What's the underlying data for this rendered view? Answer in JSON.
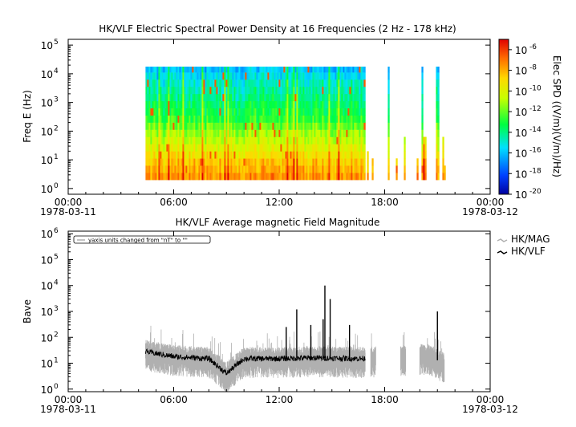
{
  "chart_data": [
    {
      "type": "heatmap",
      "title": "HK/VLF  Electric Spectral Power Density at 16 Frequencies (2 Hz - 178 kHz)",
      "ylabel": "Freq E (Hz)",
      "ylim_log10": [
        -0.2,
        5.2
      ],
      "y_scale": "log",
      "xlim_hours": [
        0,
        24
      ],
      "x_ticks": [
        {
          "time": "00:00",
          "date": "1978-03-11"
        },
        {
          "time": "06:00",
          "date": ""
        },
        {
          "time": "12:00",
          "date": ""
        },
        {
          "time": "18:00",
          "date": ""
        },
        {
          "time": "00:00",
          "date": "1978-03-12"
        }
      ],
      "y_ticks_log10": [
        0,
        1,
        2,
        3,
        4,
        5
      ],
      "colorbar": {
        "label": "Elec SPD ((V/m)(V/m)/Hz)",
        "range_log10": [
          -20,
          -5
        ],
        "tick_exponents": [
          -6,
          -8,
          -10,
          -12,
          -14,
          -16,
          -18,
          -20
        ]
      },
      "data_coverage_hours": [
        {
          "start": 4.4,
          "end": 16.9,
          "note": "continuous"
        },
        {
          "start": 16.9,
          "end": 21.4,
          "note": "sparse"
        }
      ],
      "frequency_bands_log10": [
        0.3,
        0.55,
        0.8,
        1.05,
        1.3,
        1.55,
        1.8,
        2.05,
        2.3,
        2.55,
        2.8,
        3.05,
        3.3,
        3.55,
        3.8,
        4.05,
        4.25
      ],
      "spd_log10_by_band": [
        -7.5,
        -8.0,
        -8.5,
        -9.2,
        -10.0,
        -10.6,
        -11.2,
        -12.0,
        -12.8,
        -13.2,
        -13.6,
        -14.0,
        -14.4,
        -14.8,
        -15.4,
        -16.0
      ]
    },
    {
      "type": "line",
      "title": "HK/VLF  Average magnetic Field Magnitude",
      "ylabel": "Bave",
      "y_scale": "log",
      "ylim_log10": [
        -0.1,
        6.1
      ],
      "y_ticks_log10": [
        0,
        1,
        2,
        3,
        4,
        5,
        6
      ],
      "xlim_hours": [
        0,
        24
      ],
      "x_ticks": [
        {
          "time": "00:00",
          "date": "1978-03-11"
        },
        {
          "time": "06:00",
          "date": ""
        },
        {
          "time": "12:00",
          "date": ""
        },
        {
          "time": "18:00",
          "date": ""
        },
        {
          "time": "00:00",
          "date": "1978-03-12"
        }
      ],
      "annotation": "yaxis units changed from \"nT\" to \"\"",
      "series": [
        {
          "name": "HK/MAG",
          "color": "#b0b0b0"
        },
        {
          "name": "HK/VLF",
          "color": "#000000"
        }
      ],
      "typical_values": [
        {
          "t_hours": 4.4,
          "value": 28
        },
        {
          "t_hours": 6.0,
          "value": 18
        },
        {
          "t_hours": 8.0,
          "value": 15
        },
        {
          "t_hours": 9.0,
          "value": 4
        },
        {
          "t_hours": 10.0,
          "value": 15
        },
        {
          "t_hours": 12.0,
          "value": 15
        },
        {
          "t_hours": 14.0,
          "value": 16
        },
        {
          "t_hours": 16.8,
          "value": 15
        },
        {
          "t_hours": 20.5,
          "value": 20
        },
        {
          "t_hours": 21.3,
          "value": 10
        }
      ],
      "spikes": [
        {
          "t_hours": 12.4,
          "value": 250
        },
        {
          "t_hours": 13.0,
          "value": 1200
        },
        {
          "t_hours": 13.8,
          "value": 300
        },
        {
          "t_hours": 14.5,
          "value": 500
        },
        {
          "t_hours": 14.6,
          "value": 10000
        },
        {
          "t_hours": 14.9,
          "value": 3000
        },
        {
          "t_hours": 16.0,
          "value": 300
        },
        {
          "t_hours": 21.0,
          "value": 1000
        }
      ]
    }
  ]
}
